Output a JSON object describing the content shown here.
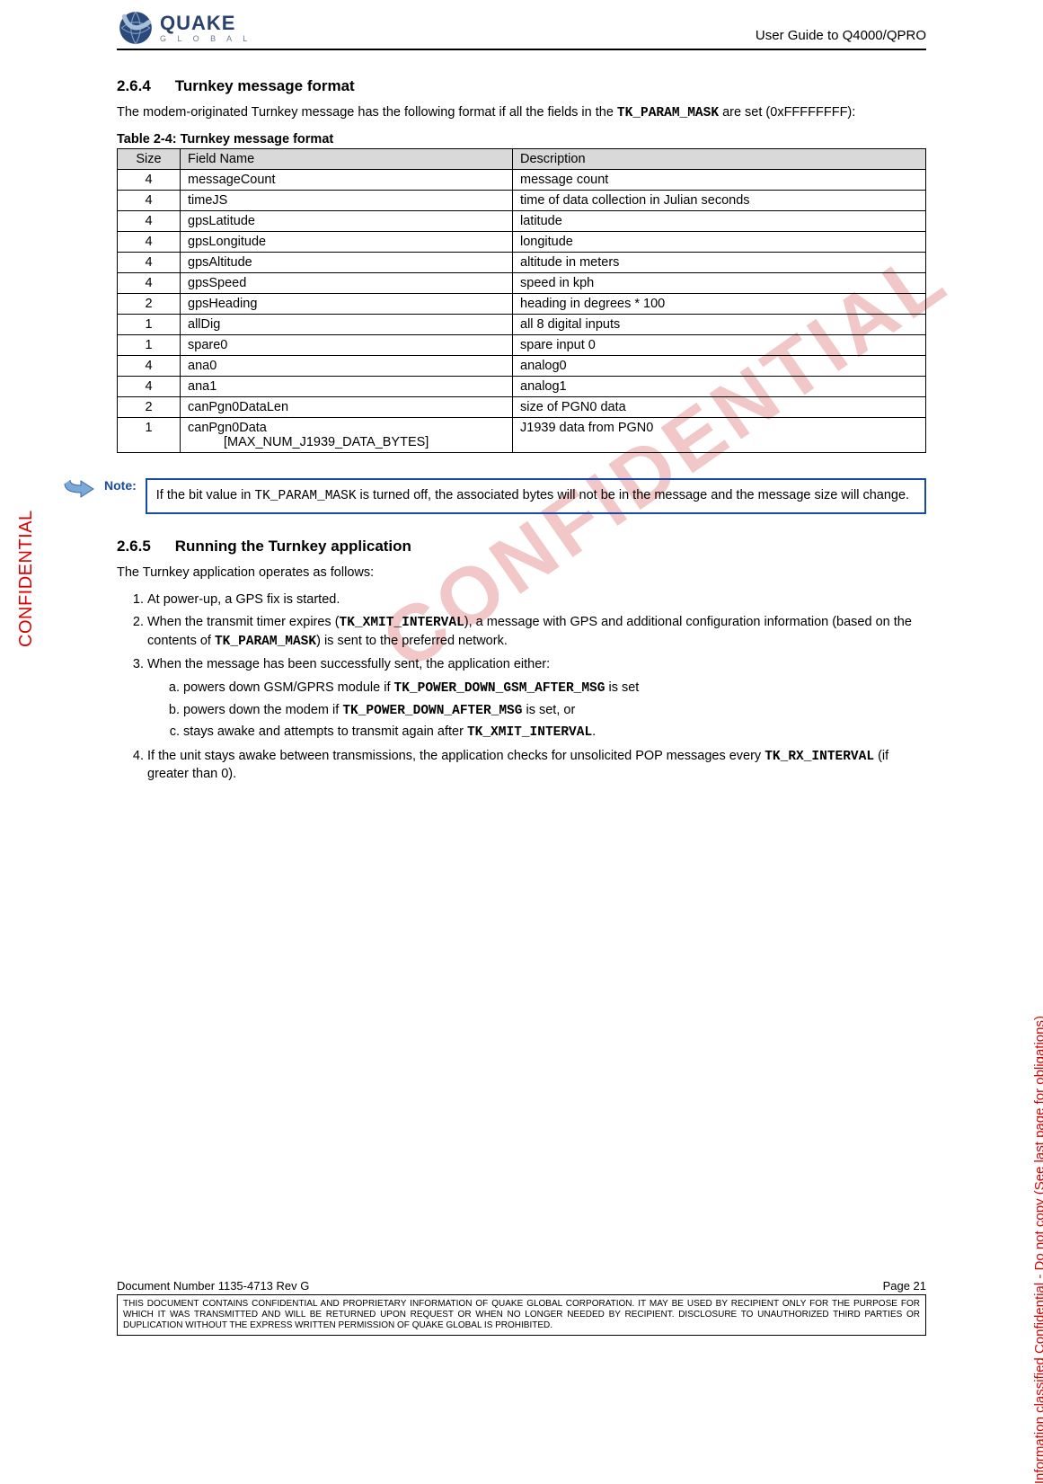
{
  "header": {
    "logo_main": "QUAKE",
    "logo_sub": "G L O B A L",
    "right": "User Guide to Q4000/QPRO"
  },
  "s264": {
    "num": "2.6.4",
    "title": "Turnkey message format",
    "intro_a": "The modem-originated Turnkey message has the following format if all the fields in the ",
    "intro_code": "TK_PARAM_MASK",
    "intro_b": " are set (0xFFFFFFFF):",
    "table_caption": "Table 2-4:  Turnkey message format",
    "headers": {
      "size": "Size",
      "field": "Field Name",
      "desc": "Description"
    },
    "rows": [
      {
        "size": "4",
        "field": "messageCount",
        "desc": "message count"
      },
      {
        "size": "4",
        "field": "timeJS",
        "desc": "time of data collection in Julian seconds"
      },
      {
        "size": "4",
        "field": "gpsLatitude",
        "desc": "latitude"
      },
      {
        "size": "4",
        "field": "gpsLongitude",
        "desc": "longitude"
      },
      {
        "size": "4",
        "field": "gpsAltitude",
        "desc": "altitude in meters"
      },
      {
        "size": "4",
        "field": "gpsSpeed",
        "desc": "speed in kph"
      },
      {
        "size": "2",
        "field": "gpsHeading",
        "desc": "heading in degrees * 100"
      },
      {
        "size": "1",
        "field": "allDig",
        "desc": "all 8 digital inputs"
      },
      {
        "size": "1",
        "field": "spare0",
        "desc": "spare input 0"
      },
      {
        "size": "4",
        "field": "ana0",
        "desc": "analog0"
      },
      {
        "size": "4",
        "field": "ana1",
        "desc": "analog1"
      },
      {
        "size": "2",
        "field": "canPgn0DataLen",
        "desc": "size of PGN0 data"
      },
      {
        "size": "1",
        "field": "canPgn0Data",
        "field2": "[MAX_NUM_J1939_DATA_BYTES]",
        "desc": "J1939 data from PGN0"
      }
    ]
  },
  "note": {
    "label": "Note:",
    "a": "If the bit value in ",
    "code": "TK_PARAM_MASK",
    "b": " is turned off, the associated bytes will not be in the message and the message size will change."
  },
  "s265": {
    "num": "2.6.5",
    "title": "Running the Turnkey application",
    "intro": "The Turnkey application operates as follows:",
    "li1": "At power-up, a GPS fix is started.",
    "li2a": "When the transmit timer expires (",
    "li2code1": "TK_XMIT_INTERVAL",
    "li2b": "), a message with GPS and additional configuration information (based on the contents of ",
    "li2code2": "TK_PARAM_MASK",
    "li2c": ") is sent to the preferred network.",
    "li3": "When the message has been successfully sent, the application either:",
    "li3a_a": "powers down GSM/GPRS module if ",
    "li3a_code": "TK_POWER_DOWN_GSM_AFTER_MSG",
    "li3a_b": " is set",
    "li3b_a": "powers down the modem  if ",
    "li3b_code": "TK_POWER_DOWN_AFTER_MSG",
    "li3b_b": " is set, or",
    "li3c_a": "stays awake and attempts to transmit again after ",
    "li3c_code": "TK_XMIT_INTERVAL",
    "li3c_b": ".",
    "li4a": "If the unit stays awake between transmissions, the application checks for unsolicited POP messages every ",
    "li4code": "TK_RX_INTERVAL",
    "li4b": " (if greater than 0)."
  },
  "side_left": "CONFIDENTIAL",
  "side_right": "Information classified Confidential - Do not copy (See last page for obligations)",
  "watermark": "CONFIDENTIAL",
  "footer": {
    "doc": "Document Number 1135-4713   Rev G",
    "page": "Page 21",
    "legal": "THIS DOCUMENT CONTAINS CONFIDENTIAL AND PROPRIETARY INFORMATION OF QUAKE GLOBAL CORPORATION.  IT MAY BE USED BY RECIPIENT ONLY FOR THE PURPOSE FOR WHICH IT WAS TRANSMITTED AND WILL BE RETURNED UPON REQUEST OR WHEN NO LONGER NEEDED BY RECIPIENT.  DISCLOSURE TO UNAUTHORIZED THIRD PARTIES OR DUPLICATION WITHOUT THE EXPRESS WRITTEN PERMISSION OF QUAKE GLOBAL IS PROHIBITED."
  }
}
